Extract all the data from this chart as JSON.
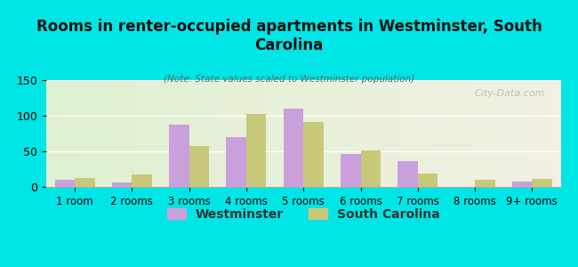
{
  "title": "Rooms in renter-occupied apartments in Westminster, South\nCarolina",
  "subtitle": "(Note: State values scaled to Westminster population)",
  "categories": [
    "1 room",
    "2 rooms",
    "3 rooms",
    "4 rooms",
    "5 rooms",
    "6 rooms",
    "7 rooms",
    "8 rooms",
    "9+ rooms"
  ],
  "westminster": [
    10,
    6,
    88,
    70,
    110,
    46,
    36,
    0,
    7
  ],
  "south_carolina": [
    12,
    18,
    58,
    103,
    91,
    51,
    19,
    10,
    11
  ],
  "westminster_color": "#c9a0dc",
  "south_carolina_color": "#c8c87a",
  "background_outer": "#00e5e5",
  "background_inner_left": "#e8f5e0",
  "background_inner_right": "#f5f0e8",
  "ylim": [
    0,
    150
  ],
  "yticks": [
    0,
    50,
    100,
    150
  ],
  "watermark": "City-Data.com",
  "legend_westminster": "Westminster",
  "legend_sc": "South Carolina"
}
